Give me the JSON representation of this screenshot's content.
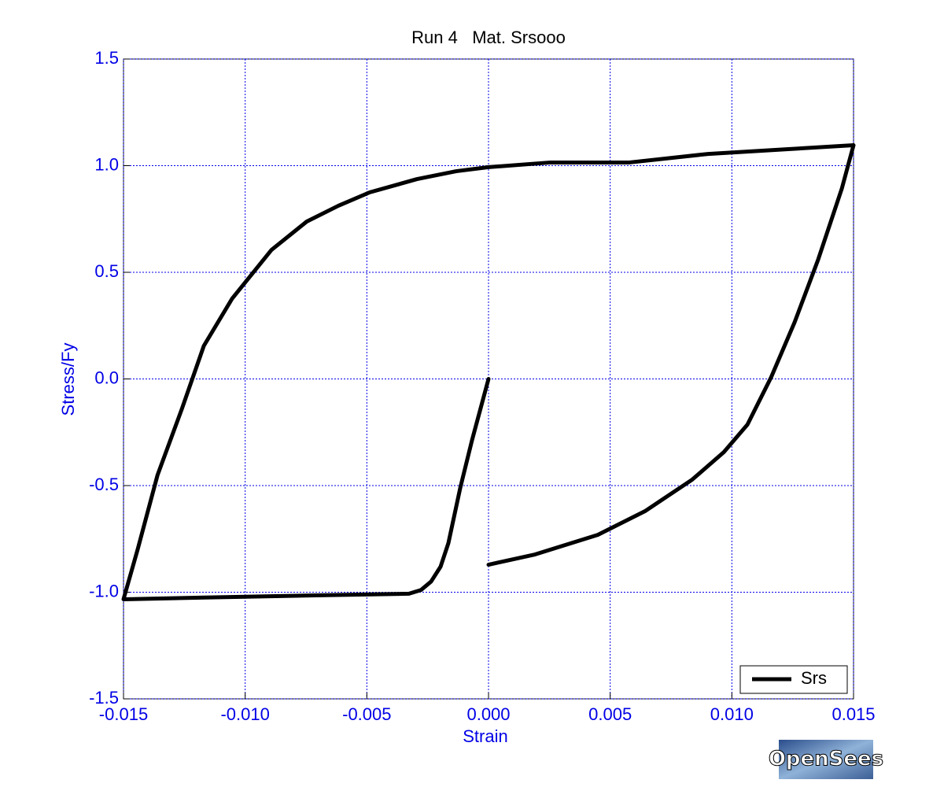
{
  "chart_data": {
    "type": "line",
    "title": "Run 4   Mat. Srsooo",
    "x_label": "Strain",
    "y_label": "Stress/Fy",
    "xlim": [
      -0.015,
      0.015
    ],
    "ylim": [
      -1.5,
      1.5
    ],
    "xticks": [
      {
        "value": -0.015,
        "label": "-0.015"
      },
      {
        "value": -0.01,
        "label": "-0.010"
      },
      {
        "value": -0.005,
        "label": "-0.005"
      },
      {
        "value": 0,
        "label": "0.000"
      },
      {
        "value": 0.005,
        "label": "0.005"
      },
      {
        "value": 0.01,
        "label": "0.010"
      },
      {
        "value": 0.015,
        "label": "0.015"
      }
    ],
    "yticks": [
      -1.5,
      {
        "value": -1,
        "label": "-1.0"
      },
      -0.5,
      {
        "value": 0,
        "label": "0.0"
      },
      0.5,
      {
        "value": 1,
        "label": "1.0"
      },
      1.5
    ],
    "grid": true,
    "legend": "bottom-right",
    "watermark": "OpenSees",
    "series": [
      {
        "name": "Srs",
        "color": "#000000",
        "x": [
          0,
          -0.00068,
          -0.00116,
          -0.00165,
          -0.00197,
          -0.00236,
          -0.00278,
          -0.00327,
          -0.00714,
          -0.0104,
          -0.015,
          -0.01442,
          -0.0136,
          -0.0126,
          -0.0117,
          -0.01054,
          -0.00892,
          -0.00747,
          -0.00617,
          -0.00488,
          -0.00294,
          -0.00133,
          0,
          0.00255,
          0.00579,
          0.00902,
          0.01225,
          0.015,
          0.01452,
          0.01355,
          0.01258,
          0.01161,
          0.01064,
          0.00967,
          0.00837,
          0.00643,
          0.00449,
          0.00191,
          0
        ],
        "values": [
          0,
          -0.288,
          -0.51,
          -0.77,
          -0.88,
          -0.95,
          -0.99,
          -1.007,
          -1.015,
          -1.022,
          -1.033,
          -0.8,
          -0.45,
          -0.14,
          0.155,
          0.376,
          0.605,
          0.738,
          0.812,
          0.875,
          0.937,
          0.974,
          0.993,
          1.015,
          1.015,
          1.055,
          1.077,
          1.096,
          0.893,
          0.561,
          0.266,
          0.007,
          -0.214,
          -0.343,
          -0.472,
          -0.62,
          -0.731,
          -0.823,
          -0.871
        ]
      }
    ]
  }
}
